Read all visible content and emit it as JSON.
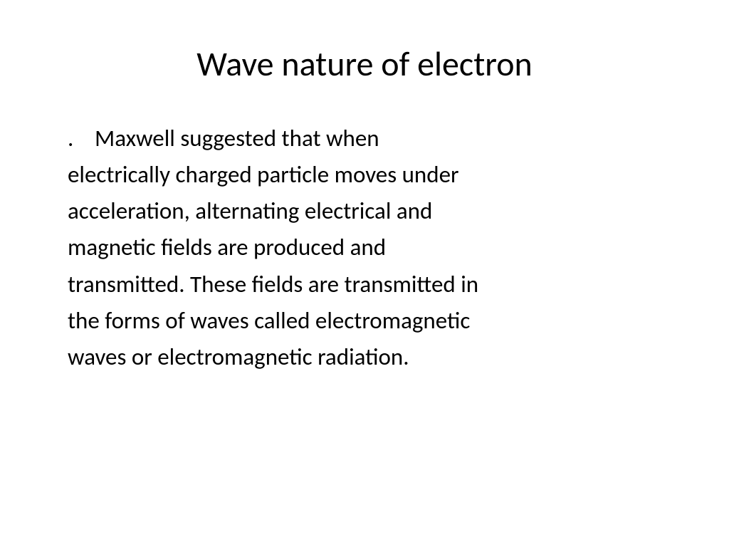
{
  "slide": {
    "title": "Wave nature of electron",
    "body": {
      "bullet": ".",
      "line1_continuation": "Maxwell suggested that when",
      "line2": "electrically charged particle moves under",
      "line3": "acceleration, alternating electrical and",
      "line4": "magnetic fields are produced and",
      "line5": "transmitted. These fields are transmitted in",
      "line6": "the forms of waves called electromagnetic",
      "line7": "waves or electromagnetic radiation."
    }
  },
  "styling": {
    "background_color": "#ffffff",
    "text_color": "#000000",
    "title_fontsize": 48,
    "body_fontsize": 33,
    "font_family": "Calibri",
    "line_height": 1.55
  }
}
